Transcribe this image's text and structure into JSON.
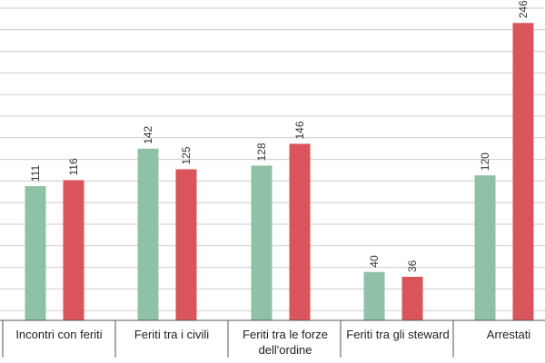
{
  "chart_data": {
    "type": "bar",
    "categories": [
      [
        "Incontri con feriti"
      ],
      [
        "Feriti tra i civili"
      ],
      [
        "Feriti tra le forze",
        "dell'ordine"
      ],
      [
        "Feriti tra gli steward"
      ],
      [
        "Arrestati"
      ]
    ],
    "series": [
      {
        "color": "#8fc1a6",
        "values": [
          111,
          142,
          128,
          40,
          120
        ]
      },
      {
        "color": "#d9545b",
        "values": [
          116,
          125,
          146,
          36,
          246
        ]
      }
    ],
    "ylim": [
      0,
      265
    ],
    "grid": true,
    "legend": "none"
  }
}
